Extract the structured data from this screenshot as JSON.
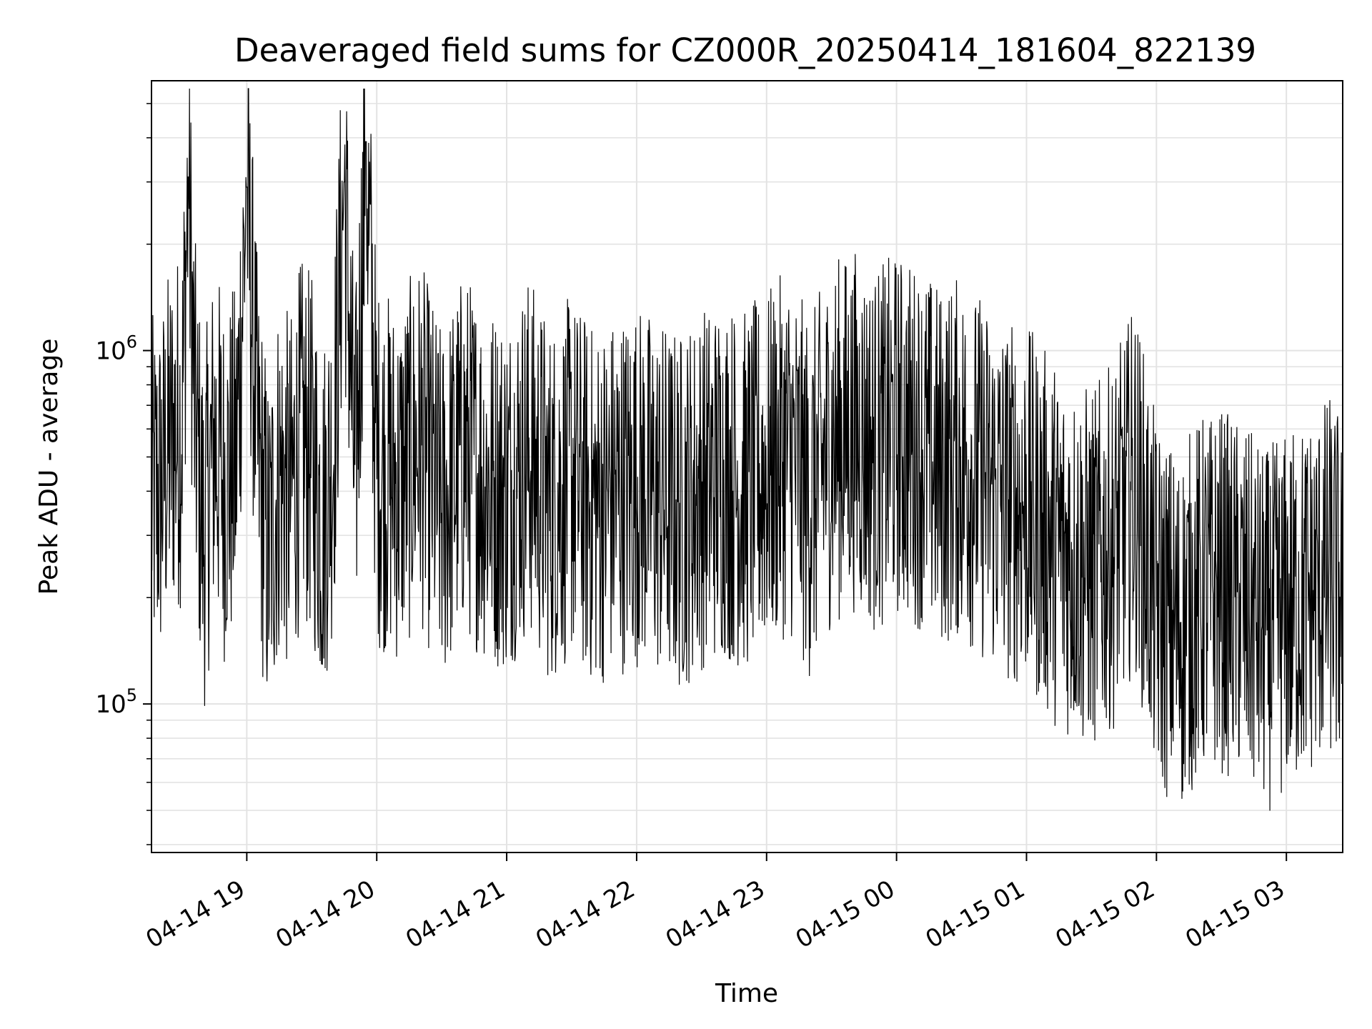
{
  "chart_data": {
    "type": "line",
    "title": "Deaveraged field sums for CZ000R_20250414_181604_822139",
    "xlabel": "Time",
    "ylabel": "Peak ADU - average",
    "y_scale": "log",
    "ylim": [
      38000,
      5800000
    ],
    "xlim": [
      "2025-04-14 18:16",
      "2025-04-15 03:26"
    ],
    "grid": true,
    "x_ticks": [
      {
        "value": "2025-04-14 19:00",
        "label": "04-14 19"
      },
      {
        "value": "2025-04-14 20:00",
        "label": "04-14 20"
      },
      {
        "value": "2025-04-14 21:00",
        "label": "04-14 21"
      },
      {
        "value": "2025-04-14 22:00",
        "label": "04-14 22"
      },
      {
        "value": "2025-04-14 23:00",
        "label": "04-14 23"
      },
      {
        "value": "2025-04-15 00:00",
        "label": "04-15 00"
      },
      {
        "value": "2025-04-15 01:00",
        "label": "04-15 01"
      },
      {
        "value": "2025-04-15 02:00",
        "label": "04-15 02"
      },
      {
        "value": "2025-04-15 03:00",
        "label": "04-15 03"
      }
    ],
    "y_ticks": [
      {
        "value": 100000,
        "base": "10",
        "exp": "5"
      },
      {
        "value": 1000000,
        "base": "10",
        "exp": "6"
      }
    ],
    "series": [
      {
        "color": "#000000",
        "points": [
          [
            "2025-04-14 18:16",
            380000
          ],
          [
            "2025-04-14 18:20",
            400000
          ],
          [
            "2025-04-14 18:25",
            560000
          ],
          [
            "2025-04-14 18:30",
            620000
          ],
          [
            "2025-04-14 18:33",
            3100000
          ],
          [
            "2025-04-14 18:36",
            650000
          ],
          [
            "2025-04-14 18:40",
            300000
          ],
          [
            "2025-04-14 18:45",
            560000
          ],
          [
            "2025-04-14 18:50",
            420000
          ],
          [
            "2025-04-14 18:55",
            480000
          ],
          [
            "2025-04-14 19:00",
            2900000
          ],
          [
            "2025-04-14 19:05",
            520000
          ],
          [
            "2025-04-14 19:10",
            260000
          ],
          [
            "2025-04-14 19:15",
            450000
          ],
          [
            "2025-04-14 19:20",
            380000
          ],
          [
            "2025-04-14 19:25",
            560000
          ],
          [
            "2025-04-14 19:30",
            500000
          ],
          [
            "2025-04-14 19:35",
            330000
          ],
          [
            "2025-04-14 19:40",
            530000
          ],
          [
            "2025-04-14 19:45",
            3000000
          ],
          [
            "2025-04-14 19:50",
            400000
          ],
          [
            "2025-04-14 19:55",
            3900000
          ],
          [
            "2025-04-14 20:00",
            480000
          ],
          [
            "2025-04-14 20:10",
            420000
          ],
          [
            "2025-04-14 20:20",
            560000
          ],
          [
            "2025-04-14 20:30",
            350000
          ],
          [
            "2025-04-14 20:40",
            520000
          ],
          [
            "2025-04-14 20:50",
            430000
          ],
          [
            "2025-04-14 21:00",
            400000
          ],
          [
            "2025-04-14 21:10",
            510000
          ],
          [
            "2025-04-14 21:20",
            370000
          ],
          [
            "2025-04-14 21:30",
            440000
          ],
          [
            "2025-04-14 21:40",
            360000
          ],
          [
            "2025-04-14 21:50",
            390000
          ],
          [
            "2025-04-14 22:00",
            420000
          ],
          [
            "2025-04-14 22:10",
            380000
          ],
          [
            "2025-04-14 22:20",
            350000
          ],
          [
            "2025-04-14 22:30",
            410000
          ],
          [
            "2025-04-14 22:40",
            440000
          ],
          [
            "2025-04-14 22:50",
            400000
          ],
          [
            "2025-04-14 23:00",
            450000
          ],
          [
            "2025-04-14 23:10",
            520000
          ],
          [
            "2025-04-14 23:20",
            380000
          ],
          [
            "2025-04-14 23:30",
            550000
          ],
          [
            "2025-04-14 23:40",
            600000
          ],
          [
            "2025-04-14 23:50",
            520000
          ],
          [
            "2025-04-15 00:00",
            580000
          ],
          [
            "2025-04-15 00:10",
            540000
          ],
          [
            "2025-04-15 00:20",
            470000
          ],
          [
            "2025-04-15 00:30",
            500000
          ],
          [
            "2025-04-15 00:40",
            430000
          ],
          [
            "2025-04-15 00:50",
            380000
          ],
          [
            "2025-04-15 01:00",
            360000
          ],
          [
            "2025-04-15 01:10",
            300000
          ],
          [
            "2025-04-15 01:20",
            260000
          ],
          [
            "2025-04-15 01:30",
            240000
          ],
          [
            "2025-04-15 01:40",
            280000
          ],
          [
            "2025-04-15 01:50",
            420000
          ],
          [
            "2025-04-15 02:00",
            190000
          ],
          [
            "2025-04-15 02:10",
            160000
          ],
          [
            "2025-04-15 02:20",
            200000
          ],
          [
            "2025-04-15 02:30",
            210000
          ],
          [
            "2025-04-15 02:40",
            190000
          ],
          [
            "2025-04-15 02:50",
            160000
          ],
          [
            "2025-04-15 03:00",
            180000
          ],
          [
            "2025-04-15 03:10",
            200000
          ],
          [
            "2025-04-15 03:20",
            230000
          ],
          [
            "2025-04-15 03:26",
            200000
          ]
        ]
      }
    ]
  }
}
